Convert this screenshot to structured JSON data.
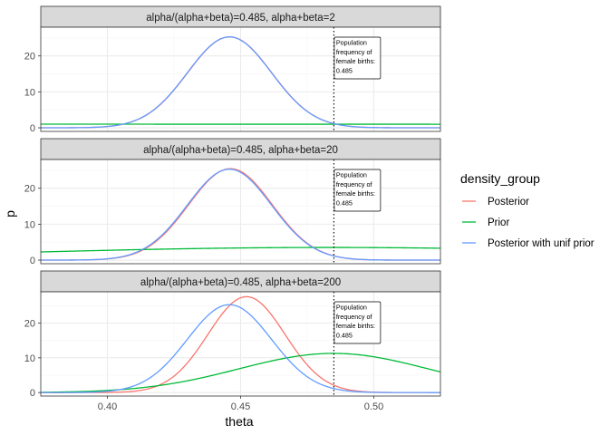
{
  "chart_data": {
    "type": "line",
    "xlabel": "theta",
    "ylabel": "p",
    "xlim": [
      0.375,
      0.525
    ],
    "x_ticks": [
      0.4,
      0.45,
      0.5
    ],
    "x_tick_labels": [
      "0.40",
      "0.45",
      "0.50"
    ],
    "grid": true,
    "legend": {
      "title": "density_group",
      "placement": "right",
      "entries": [
        {
          "label": "Posterior",
          "color": "#F8766D"
        },
        {
          "label": "Prior",
          "color": "#00BA38"
        },
        {
          "label": "Posterior with unif prior",
          "color": "#619CFF"
        }
      ]
    },
    "reference_line": {
      "x": 0.485,
      "style": "dotted",
      "annotation": [
        "Population",
        "frequency of",
        "female births:",
        "0.485"
      ]
    },
    "panels": [
      {
        "strip": "alpha/(alpha+beta)=0.485, alpha+beta=2",
        "ylim": [
          -1,
          28
        ],
        "y_ticks": [
          0,
          10,
          20
        ],
        "y_tick_labels": [
          "0",
          "10",
          "20"
        ],
        "series": [
          {
            "name": "Posterior",
            "color": "#F8766D",
            "kind": "normal",
            "mean": 0.4459,
            "sd": 0.01577,
            "peak": 25.3
          },
          {
            "name": "Prior",
            "color": "#00BA38",
            "kind": "beta",
            "alpha": 0.97,
            "beta": 1.03
          },
          {
            "name": "Posterior with unif prior",
            "color": "#619CFF",
            "kind": "normal",
            "mean": 0.4458,
            "sd": 0.01577,
            "peak": 25.3
          }
        ]
      },
      {
        "strip": "alpha/(alpha+beta)=0.485, alpha+beta=20",
        "ylim": [
          -1,
          28
        ],
        "y_ticks": [
          0,
          10,
          20
        ],
        "y_tick_labels": [
          "0",
          "10",
          "20"
        ],
        "series": [
          {
            "name": "Posterior",
            "color": "#F8766D",
            "kind": "normal",
            "mean": 0.4462,
            "sd": 0.01568,
            "peak": 25.45
          },
          {
            "name": "Prior",
            "color": "#00BA38",
            "kind": "beta",
            "alpha": 9.7,
            "beta": 10.3
          },
          {
            "name": "Posterior with unif prior",
            "color": "#619CFF",
            "kind": "normal",
            "mean": 0.4458,
            "sd": 0.01577,
            "peak": 25.3
          }
        ]
      },
      {
        "strip": "alpha/(alpha+beta)=0.485, alpha+beta=200",
        "ylim": [
          -1,
          29
        ],
        "y_ticks": [
          0,
          10,
          20
        ],
        "y_tick_labels": [
          "0",
          "10",
          "20"
        ],
        "series": [
          {
            "name": "Posterior",
            "color": "#F8766D",
            "kind": "normal",
            "mean": 0.4522,
            "sd": 0.01447,
            "peak": 27.6
          },
          {
            "name": "Prior",
            "color": "#00BA38",
            "kind": "beta",
            "alpha": 97,
            "beta": 103
          },
          {
            "name": "Posterior with unif prior",
            "color": "#619CFF",
            "kind": "normal",
            "mean": 0.4458,
            "sd": 0.01577,
            "peak": 25.3
          }
        ]
      }
    ]
  }
}
